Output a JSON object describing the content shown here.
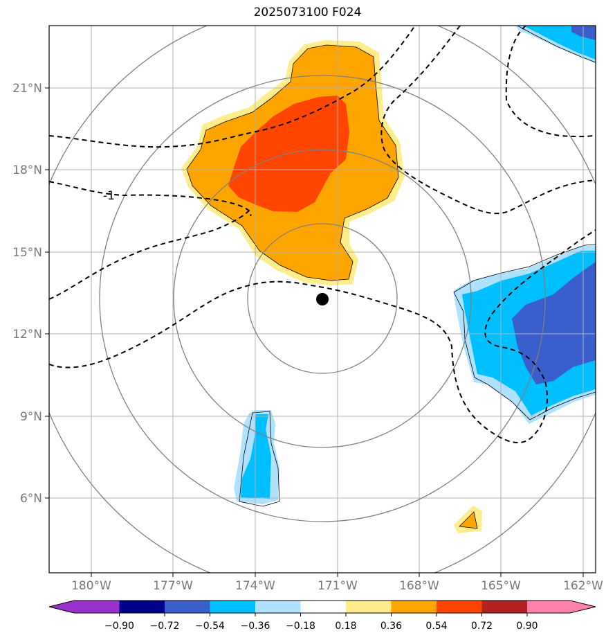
{
  "title": "2025073100 F024",
  "axes": {
    "lon_labels": [
      "180°W",
      "177°W",
      "174°W",
      "171°W",
      "168°W",
      "165°W",
      "162°W"
    ],
    "lat_labels": [
      "21°N",
      "18°N",
      "15°N",
      "12°N",
      "9°N",
      "6°N"
    ],
    "lon_range": [
      -181.5,
      -161.8
    ],
    "lat_range": [
      3.4,
      23.2
    ],
    "grid": true
  },
  "storm_center": {
    "lon": -171.2,
    "lat": 13.3
  },
  "contour_label": "-1",
  "colorbar": {
    "ticks": [
      "−0.90",
      "−0.72",
      "−0.54",
      "−0.36",
      "−0.18",
      "0.18",
      "0.36",
      "0.54",
      "0.72",
      "0.90"
    ],
    "colors": [
      "#9932cc",
      "#00008b",
      "#3a5fcd",
      "#00bfff",
      "#b0e2ff",
      "#ffffff",
      "#ffec8b",
      "#ffa500",
      "#ff4500",
      "#b22222",
      "#ff82ab"
    ],
    "extend": "both"
  },
  "colors": {
    "orange": "#ffa500",
    "red_orange": "#ff4500",
    "light_yellow": "#ffec8b",
    "deep_sky": "#00bfff",
    "light_blue": "#b0e2ff",
    "royal_blue": "#3a5fcd",
    "grid": "#b0b0b0",
    "range_rings": "#808080"
  }
}
